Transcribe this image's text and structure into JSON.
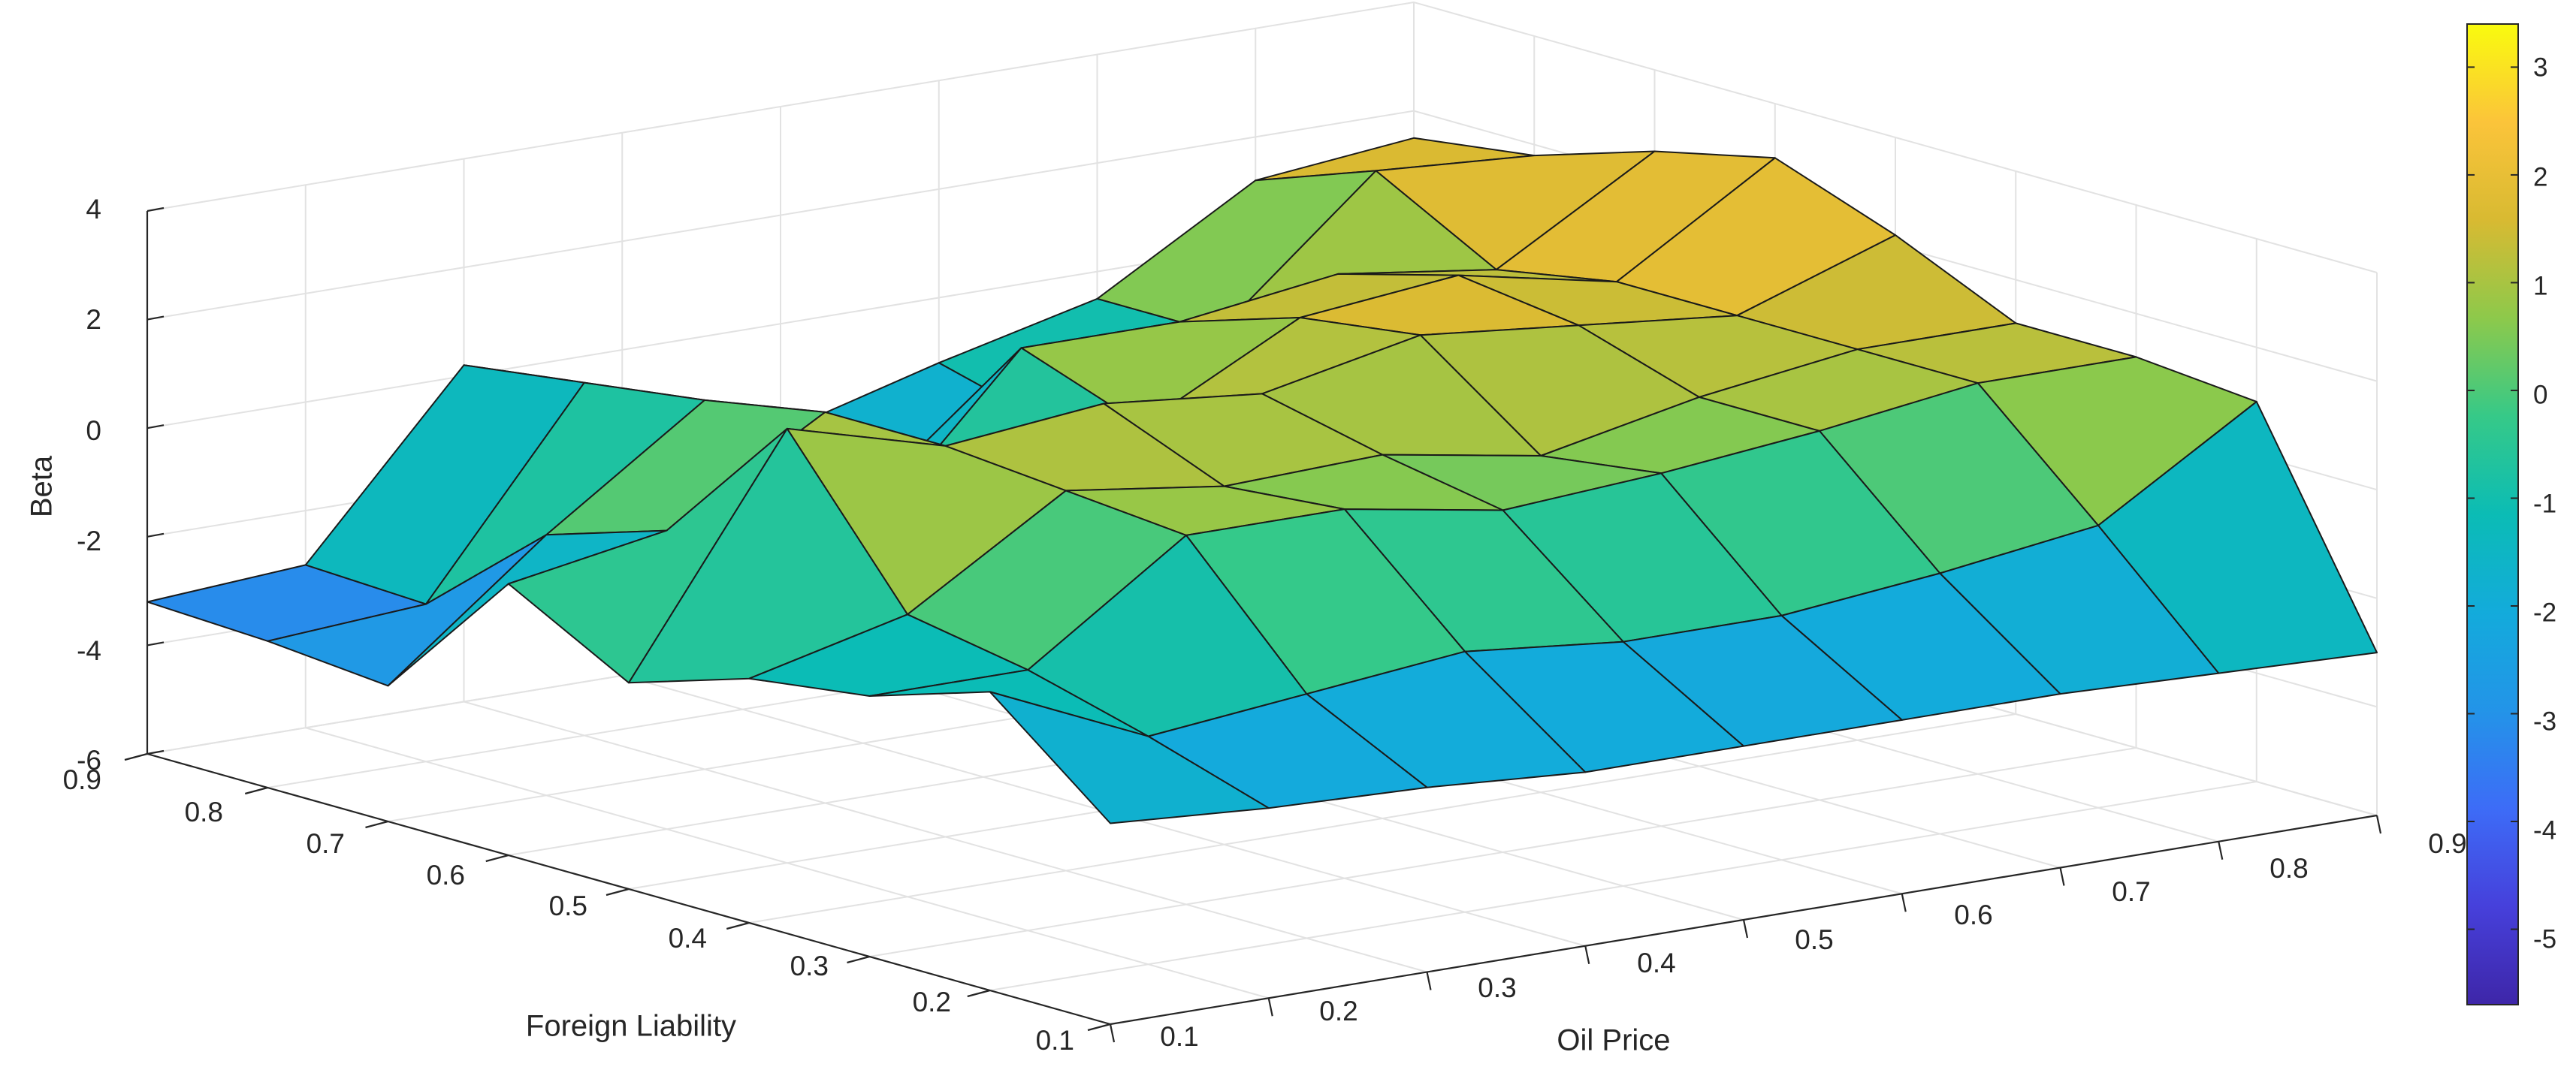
{
  "chart_data": {
    "type": "surface3d",
    "title": "",
    "xlabel": "Oil Price",
    "ylabel": "Foreign Liability",
    "zlabel": "Beta",
    "x": [
      0.1,
      0.2,
      0.3,
      0.4,
      0.5,
      0.6,
      0.7,
      0.8,
      0.9
    ],
    "y": [
      0.1,
      0.2,
      0.3,
      0.4,
      0.5,
      0.6,
      0.7,
      0.8,
      0.9
    ],
    "x_ticks": [
      "0.1",
      "0.2",
      "0.3",
      "0.4",
      "0.5",
      "0.6",
      "0.7",
      "0.8",
      "0.9"
    ],
    "y_ticks": [
      "0.1",
      "0.2",
      "0.3",
      "0.4",
      "0.5",
      "0.6",
      "0.7",
      "0.8",
      "0.9"
    ],
    "z_ticks": [
      "-6",
      "-4",
      "-2",
      "0",
      "2",
      "4"
    ],
    "zlim": [
      -6,
      4
    ],
    "grid": true,
    "colormap": "parula",
    "z_rows_by_y": [
      [
        -2.3,
        -2.5,
        -2.6,
        -2.8,
        -2.8,
        -2.8,
        -2.8,
        -2.9,
        -3.0
      ],
      [
        -0.5,
        -1.8,
        -1.5,
        -1.2,
        -1.5,
        -1.5,
        -1.2,
        -0.8,
        1.0
      ],
      [
        -1.2,
        -1.2,
        0.8,
        0.8,
        0.3,
        0.5,
        0.8,
        1.2,
        1.2
      ],
      [
        -1.5,
        -0.8,
        1.0,
        0.6,
        0.7,
        0.2,
        0.8,
        1.2,
        1.2
      ],
      [
        -2.2,
        2.0,
        1.2,
        1.5,
        1.2,
        1.8,
        1.5,
        1.2,
        2.2
      ],
      [
        -1.0,
        -0.5,
        1.2,
        -1.2,
        0.0,
        1.5,
        1.8,
        1.2,
        3.0
      ],
      [
        -3.5,
        -1.2,
        0.8,
        -2.2,
        0.8,
        0.8,
        1.2,
        0.8,
        2.5
      ],
      [
        -3.3,
        -3.1,
        0.5,
        -2.8,
        -2.0,
        -1.8,
        -0.5,
        2.0,
        1.8
      ],
      [
        -3.2,
        -3.0,
        0.2,
        -3.2,
        -2.0,
        -1.2,
        -0.5,
        1.2,
        1.5
      ]
    ],
    "colorbar": {
      "ticks": [
        "3",
        "2",
        "1",
        "0",
        "-1",
        "-2",
        "-3",
        "-4",
        "-5"
      ],
      "range": [
        -5.7,
        3.4
      ]
    }
  }
}
